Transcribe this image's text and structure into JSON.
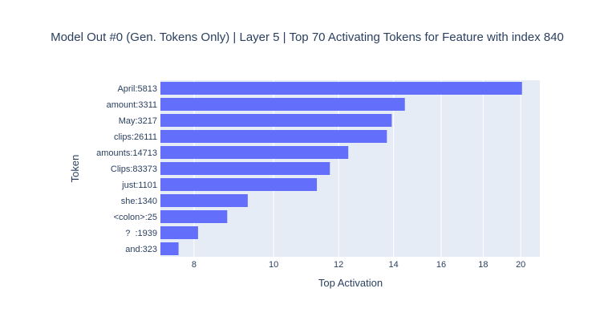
{
  "chart_data": {
    "type": "bar",
    "orientation": "horizontal",
    "title": "Model Out #0 (Gen. Tokens Only) | Layer 5 | Top 70 Activating Tokens for Feature with index 840",
    "xlabel": "Top Activation",
    "ylabel": "Token",
    "xscale": "log",
    "xlim": [
      7.28,
      21.1
    ],
    "xticks": [
      8,
      10,
      12,
      14,
      16,
      18,
      20
    ],
    "categories": [
      "April:5813",
      "amount:3311",
      "May:3217",
      "clips:26111",
      "amounts:14713",
      "Clips:83373",
      "just:1101",
      "she:1340",
      "<colon>:25",
      "?  :1939",
      "and:323"
    ],
    "values": [
      20.07,
      14.45,
      13.93,
      13.74,
      12.33,
      11.71,
      11.29,
      9.3,
      8.78,
      8.09,
      7.66
    ],
    "colors": {
      "bar": "#636efa",
      "plot_bg": "#e5ecf6",
      "grid": "#ffffff",
      "text": "#2a3f5f"
    },
    "grid": true
  }
}
